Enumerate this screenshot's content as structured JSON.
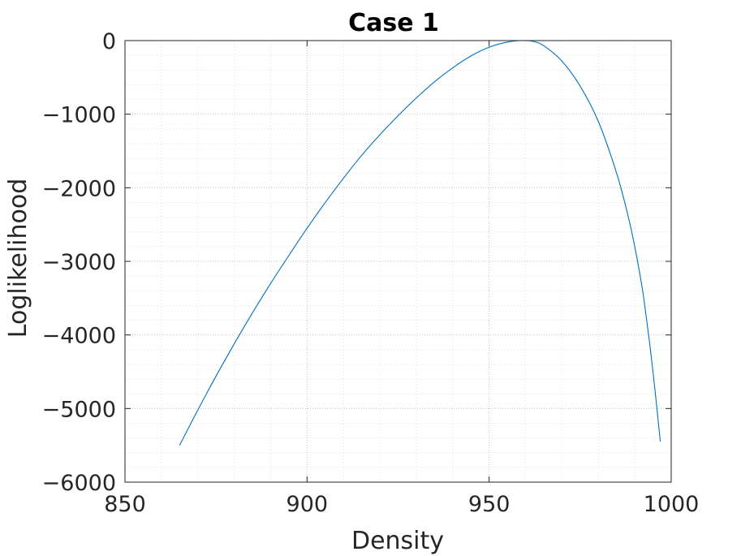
{
  "chart_data": {
    "type": "line",
    "title": "Case 1",
    "xlabel": "Density",
    "ylabel": "Loglikelihood",
    "xlim": [
      850,
      1000
    ],
    "ylim": [
      -6000,
      0
    ],
    "xticks": [
      850,
      900,
      950,
      1000
    ],
    "yticks": [
      0,
      -1000,
      -2000,
      -3000,
      -4000,
      -5000,
      -6000
    ],
    "xtick_labels": [
      "850",
      "900",
      "950",
      "1000"
    ],
    "ytick_labels": [
      "0",
      "−1000",
      "−2000",
      "−3000",
      "−4000",
      "−5000",
      "−6000"
    ],
    "grid": true,
    "minor_grid": true,
    "box": true,
    "series": [
      {
        "color": "#0072BD",
        "x": [
          865,
          870,
          875,
          880,
          885,
          890,
          895,
          900,
          905,
          910,
          915,
          920,
          925,
          930,
          935,
          940,
          945,
          950,
          955,
          959,
          962,
          965,
          970,
          975,
          980,
          985,
          988,
          990,
          992,
          993,
          994,
          995,
          996,
          997
        ],
        "y": [
          -5500,
          -5020,
          -4560,
          -4120,
          -3700,
          -3300,
          -2920,
          -2550,
          -2200,
          -1870,
          -1560,
          -1280,
          -1020,
          -780,
          -560,
          -370,
          -210,
          -90,
          -20,
          0,
          -10,
          -70,
          -280,
          -620,
          -1100,
          -1800,
          -2350,
          -2800,
          -3350,
          -3700,
          -4080,
          -4500,
          -4960,
          -5450
        ]
      }
    ]
  }
}
